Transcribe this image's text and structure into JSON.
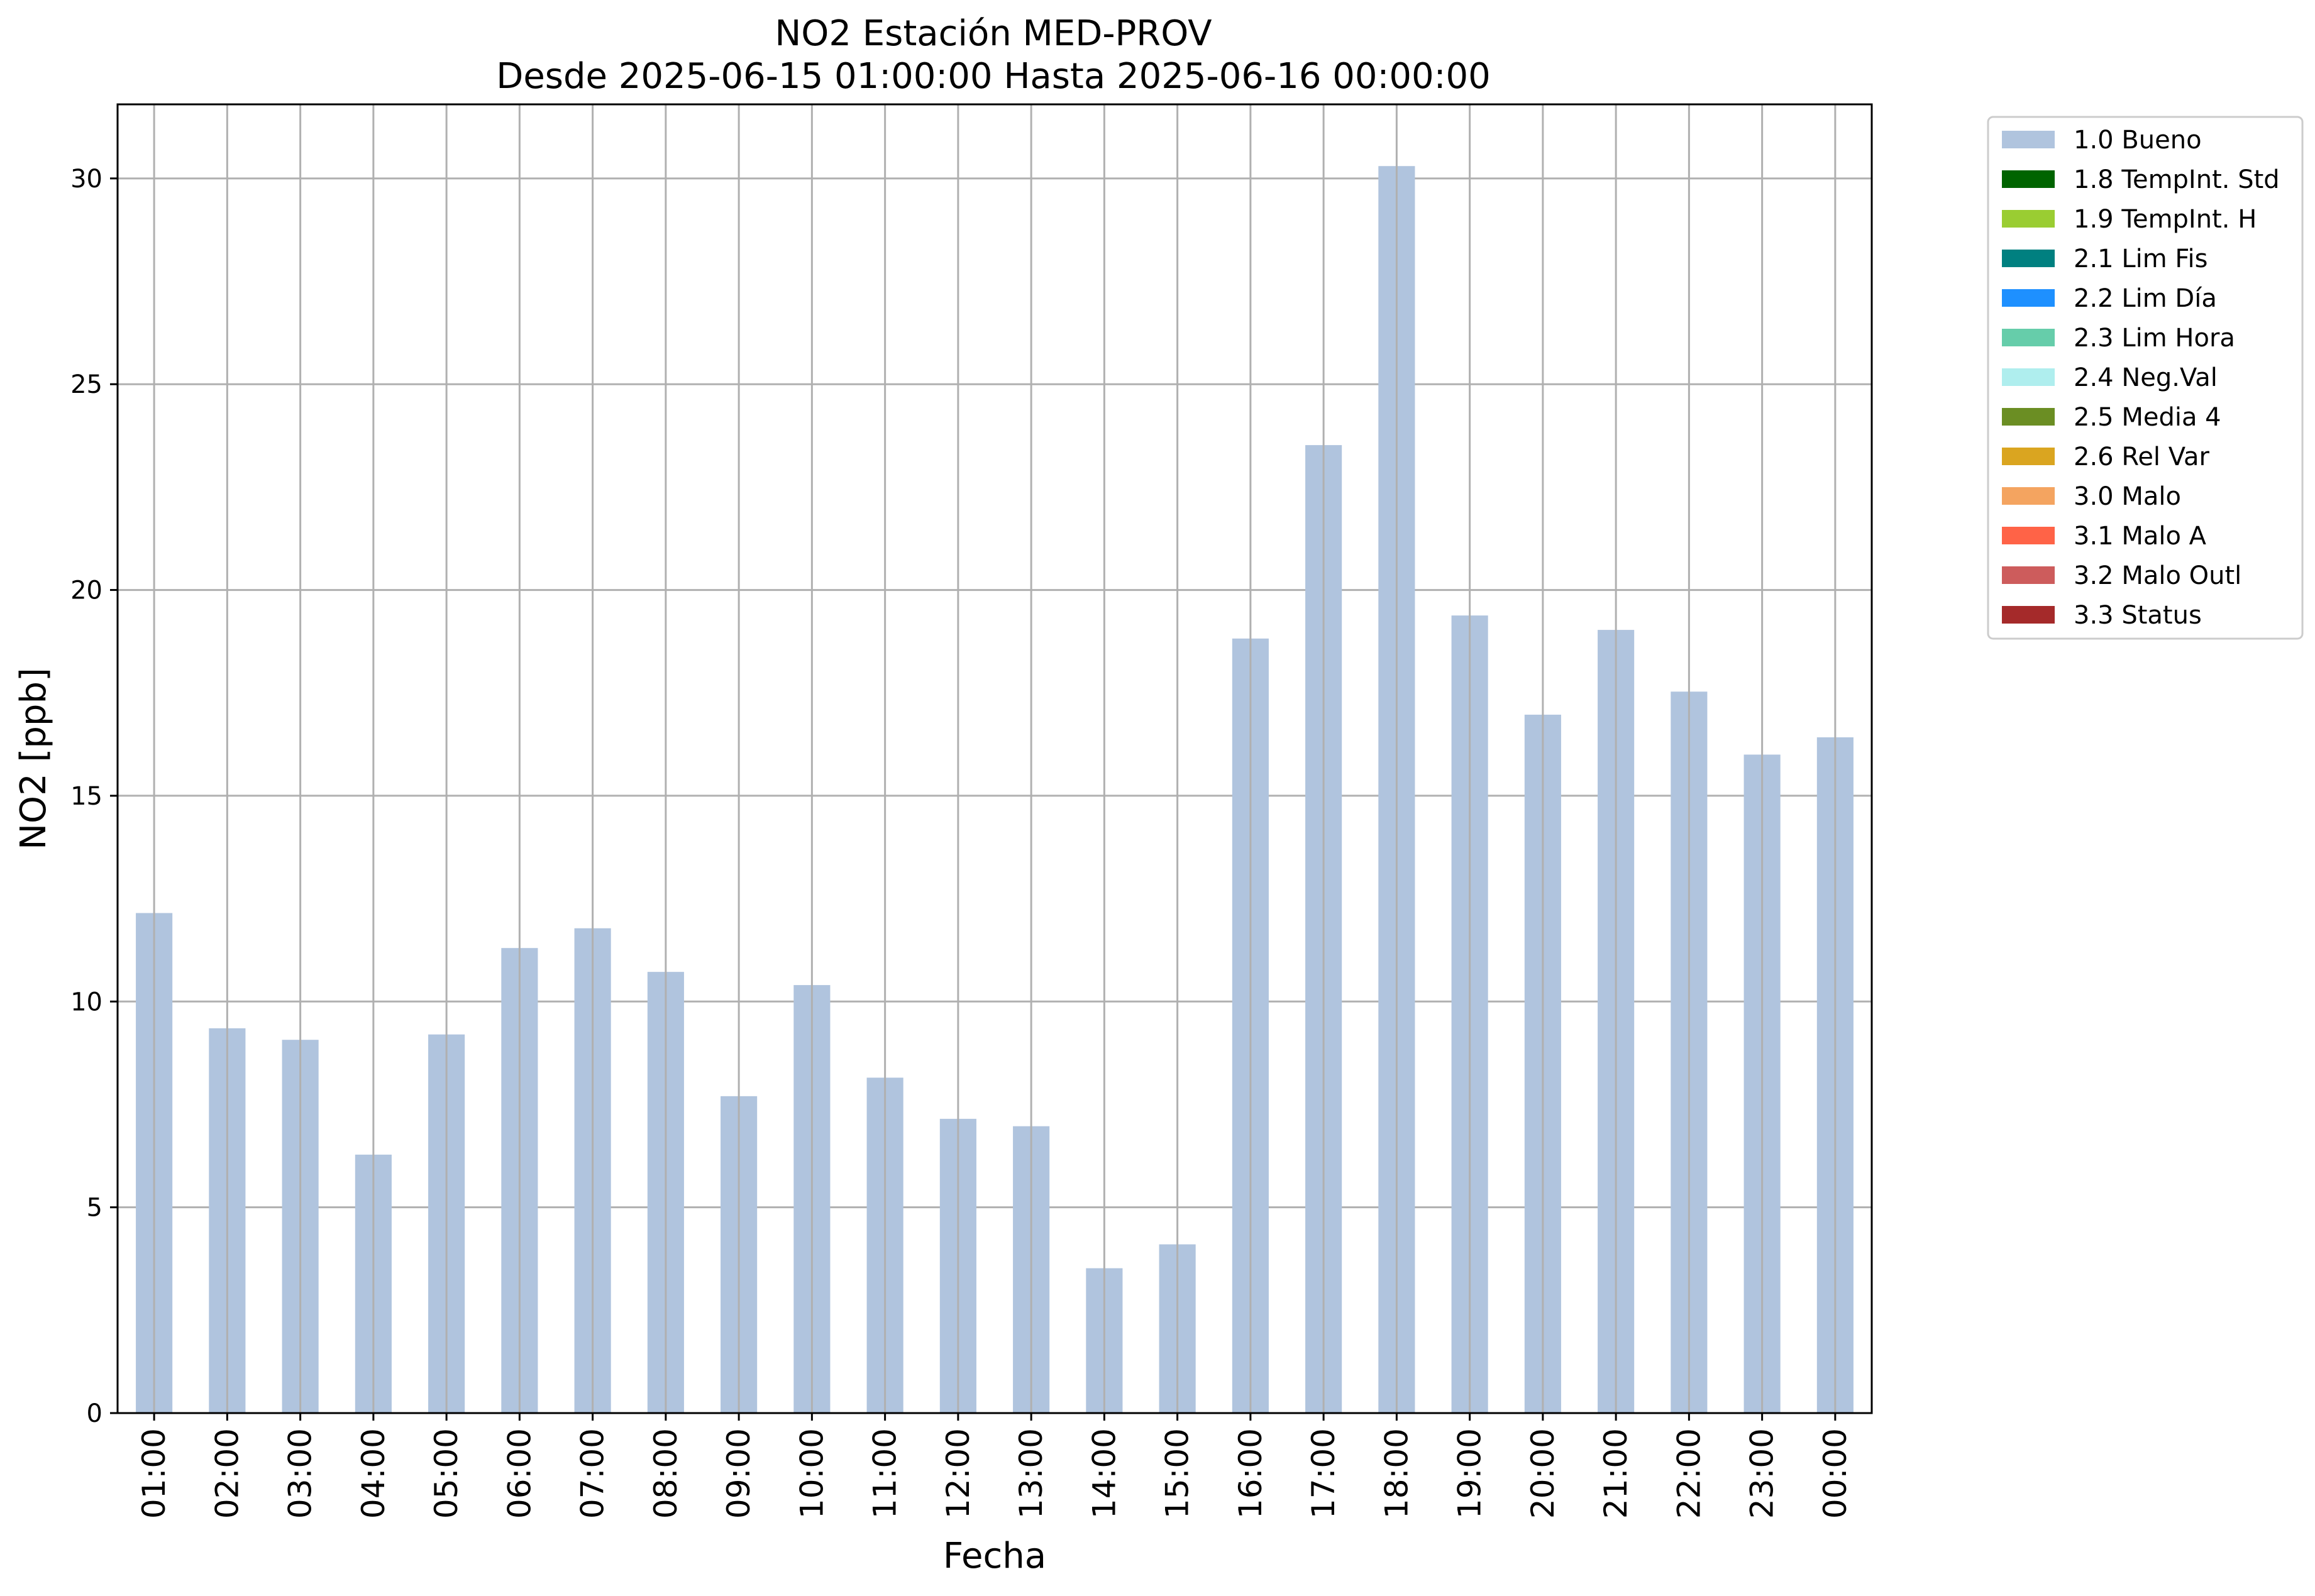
{
  "chart_data": {
    "type": "bar",
    "title": "NO2 Estación MED-PROV",
    "subtitle": "Desde 2025-06-15 01:00:00 Hasta 2025-06-16 00:00:00",
    "xlabel": "Fecha",
    "ylabel": "NO2 [ppb]",
    "ylim": [
      0,
      31.8
    ],
    "yticks": [
      0,
      5,
      10,
      15,
      20,
      25,
      30
    ],
    "grid": true,
    "legend_position": "outside-right-top",
    "categories": [
      "01:00",
      "02:00",
      "03:00",
      "04:00",
      "05:00",
      "06:00",
      "07:00",
      "08:00",
      "09:00",
      "10:00",
      "11:00",
      "12:00",
      "13:00",
      "14:00",
      "15:00",
      "16:00",
      "17:00",
      "18:00",
      "19:00",
      "20:00",
      "21:00",
      "22:00",
      "23:00",
      "00:00"
    ],
    "series": [
      {
        "name": "1.0 Bueno",
        "color": "#b0c4de",
        "values": [
          12.15,
          9.35,
          9.07,
          6.28,
          9.2,
          11.3,
          11.78,
          10.72,
          7.7,
          10.4,
          8.15,
          7.15,
          6.97,
          3.52,
          4.1,
          18.82,
          23.52,
          30.3,
          19.38,
          16.97,
          19.03,
          17.53,
          16.0,
          16.42
        ]
      }
    ],
    "legend": [
      {
        "label": "1.0 Bueno",
        "color": "#b0c4de"
      },
      {
        "label": "1.8 TempInt. Std",
        "color": "#006400"
      },
      {
        "label": "1.9 TempInt. H",
        "color": "#9acd32"
      },
      {
        "label": "2.1 Lim Fis",
        "color": "#008080"
      },
      {
        "label": "2.2 Lim Día",
        "color": "#1e90ff"
      },
      {
        "label": "2.3 Lim Hora",
        "color": "#66cdaa"
      },
      {
        "label": "2.4 Neg.Val",
        "color": "#afeeee"
      },
      {
        "label": "2.5 Media 4",
        "color": "#6b8e23"
      },
      {
        "label": "2.6 Rel Var",
        "color": "#daa520"
      },
      {
        "label": "3.0 Malo",
        "color": "#f4a460"
      },
      {
        "label": "3.1 Malo A",
        "color": "#ff6347"
      },
      {
        "label": "3.2 Malo Outl",
        "color": "#cd5c5c"
      },
      {
        "label": "3.3 Status",
        "color": "#a52a2a"
      }
    ]
  }
}
